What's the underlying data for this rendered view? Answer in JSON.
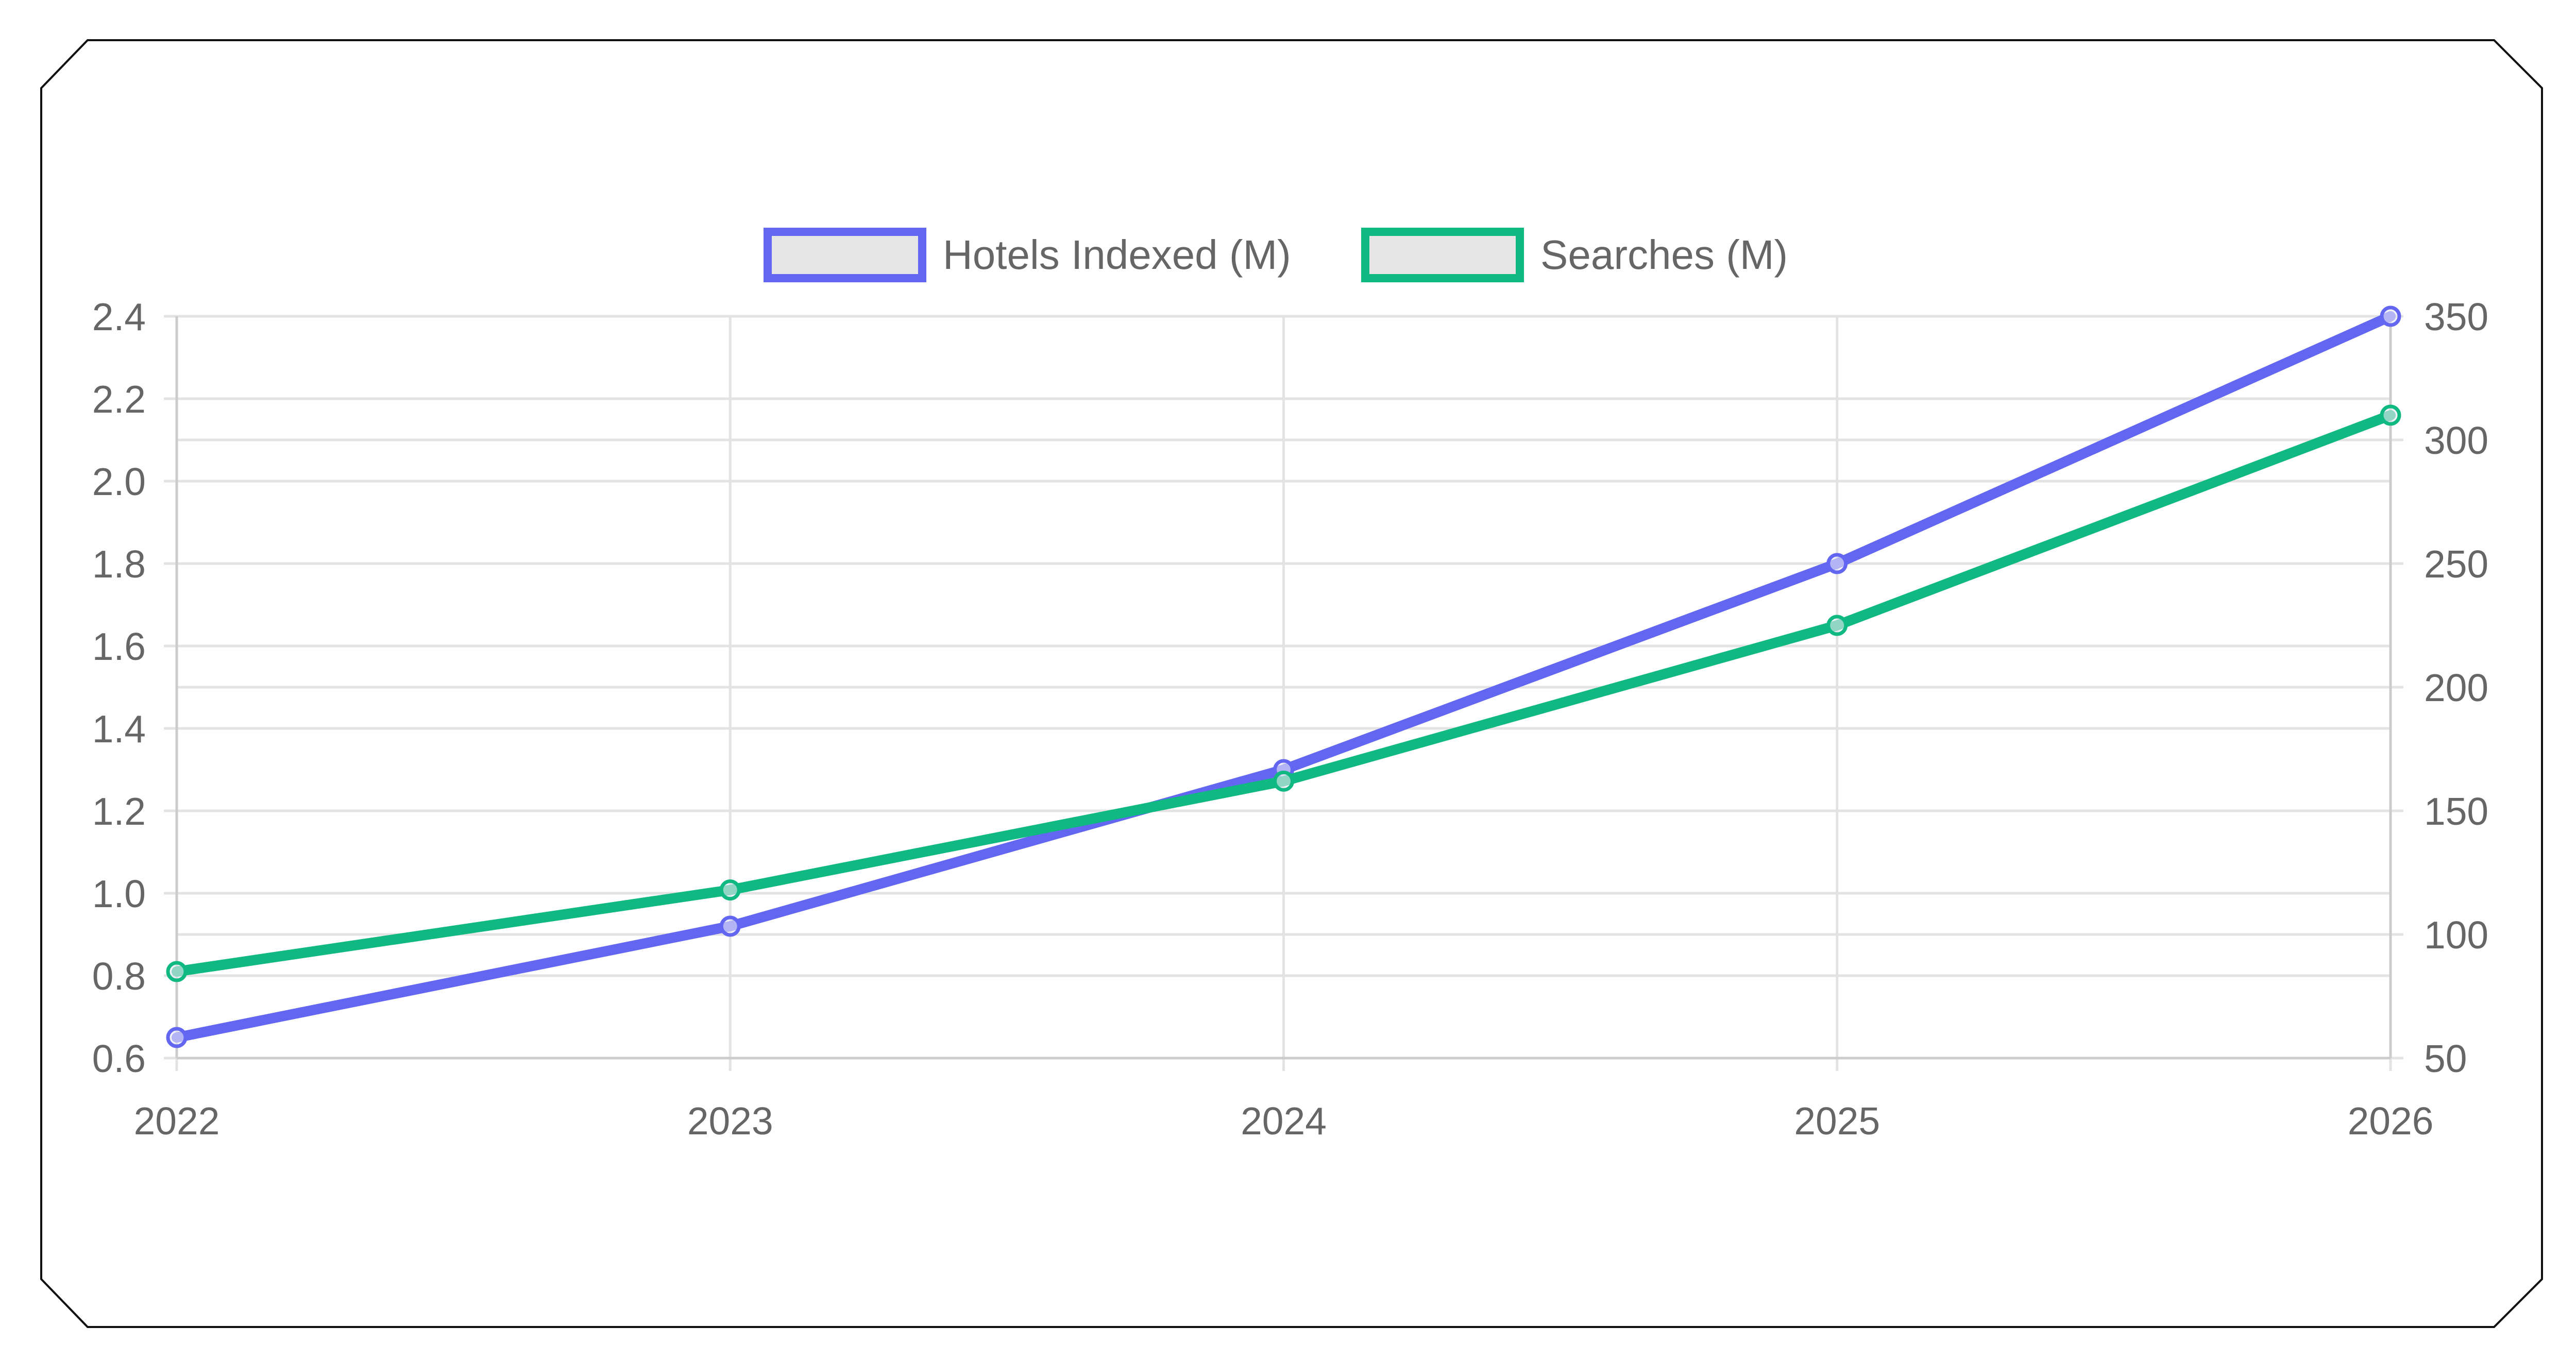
{
  "chart_data": {
    "type": "line",
    "title": "",
    "categories": [
      "2022",
      "2023",
      "2024",
      "2025",
      "2026"
    ],
    "legend_position": "top-center",
    "grid": true,
    "y_axis_left": {
      "min": 0.6,
      "max": 2.4,
      "ticks": [
        "0.6",
        "0.8",
        "1.0",
        "1.2",
        "1.4",
        "1.6",
        "1.8",
        "2.0",
        "2.2",
        "2.4"
      ]
    },
    "y_axis_right": {
      "min": 50,
      "max": 350,
      "ticks": [
        "50",
        "100",
        "150",
        "200",
        "250",
        "300",
        "350"
      ]
    },
    "series": [
      {
        "name": "Hotels Indexed (M)",
        "axis": "left",
        "color": "#6366f1",
        "values": [
          0.65,
          0.92,
          1.3,
          1.8,
          2.4
        ]
      },
      {
        "name": "Searches (M)",
        "axis": "right",
        "color": "#10b981",
        "values": [
          85,
          118,
          162,
          225,
          310
        ]
      }
    ]
  }
}
